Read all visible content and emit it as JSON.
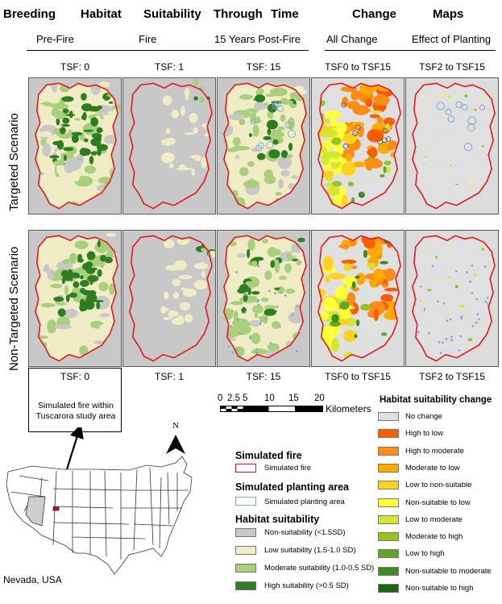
{
  "title_words": [
    "Breeding",
    "Habitat",
    "Suitability",
    "Through",
    "Time",
    "Change",
    "Maps"
  ],
  "columns": [
    "Pre-Fire",
    "Fire",
    "15 Years Post-Fire",
    "All Change",
    "Effect of Planting"
  ],
  "panel_labels": [
    "TSF: 0",
    "TSF: 1",
    "TSF: 15",
    "TSF0 to TSF15",
    "TSF2 to TSF15"
  ],
  "row_labels": [
    "Targeted Scenario",
    "Non-Targeted Scenario"
  ],
  "inset": {
    "caption": "Simulated fire within Tuscarora study area",
    "map_label": "Nevada, USA"
  },
  "north_label": "N",
  "scale_bar": {
    "ticks": [
      "0",
      "2.5",
      "5",
      "10",
      "15",
      "20"
    ],
    "unit": "Kilometers"
  },
  "legend": {
    "fire_title": "Simulated fire",
    "fire_item": "Simulated fire",
    "planting_title": "Simulated planting area",
    "planting_item": "Simulated planting area",
    "suitability_title": "Habitat suitability",
    "suitability_items": [
      {
        "label": "Non-suitability (<1.5SD)",
        "color": "#c8c8c8"
      },
      {
        "label": "Low suitability (1.5-1.0 SD)",
        "color": "#f0edc6"
      },
      {
        "label": "Moderate suitability (1.0-0.5 SD)",
        "color": "#a9cf7d"
      },
      {
        "label": "High suitability (>0.5 SD)",
        "color": "#2f7d21"
      }
    ],
    "change_title": "Habitat suitability change",
    "change_items": [
      {
        "label": "No change",
        "color": "#e0e0e0"
      },
      {
        "label": "High to low",
        "color": "#ff5b00"
      },
      {
        "label": "High to moderate",
        "color": "#ff8c14"
      },
      {
        "label": "Moderate to low",
        "color": "#ffaa00"
      },
      {
        "label": "Low to non-suitable",
        "color": "#ffd21e"
      },
      {
        "label": "Non-suitable to low",
        "color": "#ffff3c"
      },
      {
        "label": "Low to moderate",
        "color": "#d2e632"
      },
      {
        "label": "Moderate to high",
        "color": "#96c31e"
      },
      {
        "label": "Low to high",
        "color": "#64a528"
      },
      {
        "label": "Non-suitable to moderate",
        "color": "#3c8c1e"
      },
      {
        "label": "Non-suitable to high",
        "color": "#1e6414"
      }
    ]
  },
  "colors": {
    "fire_outline": "#e8161b",
    "planting_outline": "#7fa7d6"
  }
}
